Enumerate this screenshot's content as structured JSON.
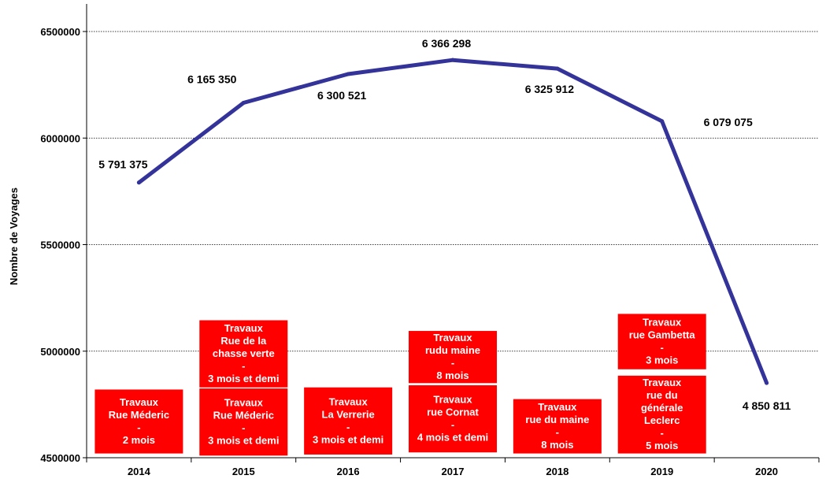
{
  "chart_data": {
    "type": "line",
    "title": "",
    "xlabel": "",
    "ylabel": "Nombre de Voyages",
    "categories": [
      "2014",
      "2015",
      "2016",
      "2017",
      "2018",
      "2019",
      "2020"
    ],
    "series": [
      {
        "values": [
          5791375,
          6165350,
          6300521,
          6366298,
          6325912,
          6079075,
          4850811
        ],
        "data_labels": [
          "5 791 375",
          "6 165 350",
          "6 300 521",
          "6 366 298",
          "6 325 912",
          "6 079 075",
          "4 850 811"
        ],
        "color": "#333399"
      }
    ],
    "ylim": [
      4500000,
      6500000
    ],
    "yticks": [
      4500000,
      5000000,
      5500000,
      6000000,
      6500000
    ],
    "ytick_labels": [
      "4500000",
      "5000000",
      "5500000",
      "6000000",
      "6500000"
    ],
    "grid": "horizontal-dotted",
    "legend": "none",
    "annotation_color": "#ff0000",
    "annotations": [
      {
        "category": "2014",
        "top": 4820000,
        "bottom": 4520000,
        "lines": [
          "Travaux",
          "Rue Méderic",
          "-",
          "2 mois"
        ]
      },
      {
        "category": "2015",
        "top": 5145000,
        "bottom": 4830000,
        "lines": [
          "Travaux",
          "Rue de la",
          "chasse verte",
          "-",
          "3 mois et demi"
        ]
      },
      {
        "category": "2015",
        "top": 4825000,
        "bottom": 4510000,
        "lines": [
          "Travaux",
          "Rue Méderic",
          "-",
          "3 mois et demi"
        ]
      },
      {
        "category": "2016",
        "top": 4830000,
        "bottom": 4515000,
        "lines": [
          "Travaux",
          "La Verrerie",
          "-",
          "3 mois et demi"
        ]
      },
      {
        "category": "2017",
        "top": 5095000,
        "bottom": 4850000,
        "lines": [
          "Travaux",
          "rudu maine",
          "-",
          "8 mois"
        ]
      },
      {
        "category": "2017",
        "top": 4840000,
        "bottom": 4525000,
        "lines": [
          "Travaux",
          "rue Cornat",
          "-",
          "4 mois et demi"
        ]
      },
      {
        "category": "2018",
        "top": 4775000,
        "bottom": 4520000,
        "lines": [
          "Travaux",
          "rue du maine",
          "-",
          "8 mois"
        ]
      },
      {
        "category": "2019",
        "top": 5175000,
        "bottom": 4915000,
        "lines": [
          "Travaux",
          "rue Gambetta",
          "-",
          "3 mois"
        ]
      },
      {
        "category": "2019",
        "top": 4885000,
        "bottom": 4520000,
        "lines": [
          "Travaux",
          "rue du",
          "générale",
          "Leclerc",
          "-",
          "5 mois"
        ]
      }
    ]
  }
}
